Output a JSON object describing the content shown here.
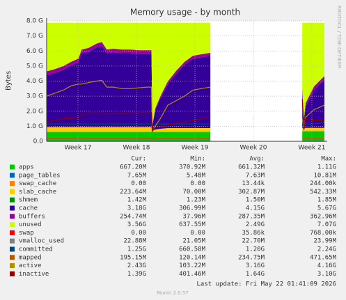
{
  "chart_data": {
    "type": "area",
    "title": "Memory usage - by month",
    "y_label": "Bytes",
    "side_text": "RRDTOOL / TOBI OETIKER",
    "x": [
      0,
      1,
      2,
      3,
      3.8,
      4.2,
      5,
      6,
      6.6,
      7.2,
      8,
      9,
      10,
      11,
      12,
      12.55,
      12.65,
      13,
      13.6,
      14.5,
      15.5,
      16.5,
      17.5,
      18.5,
      19.6,
      25,
      30.6,
      30.8,
      31,
      32,
      33.25
    ],
    "xlim": [
      0,
      33.25
    ],
    "xticks": [
      {
        "value": 3.75,
        "label": "Week 17"
      },
      {
        "value": 10.75,
        "label": "Week 18"
      },
      {
        "value": 17.75,
        "label": "Week 19"
      },
      {
        "value": 24.75,
        "label": "Week 20"
      },
      {
        "value": 31.75,
        "label": "Week 21"
      }
    ],
    "ylim": [
      0,
      8
    ],
    "yticks": [
      {
        "value": 0,
        "label": "0.0"
      },
      {
        "value": 1,
        "label": "1.0 G"
      },
      {
        "value": 2,
        "label": "2.0 G"
      },
      {
        "value": 3,
        "label": "3.0 G"
      },
      {
        "value": 4,
        "label": "4.0 G"
      },
      {
        "value": 5,
        "label": "5.0 G"
      },
      {
        "value": 6,
        "label": "6.0 G"
      },
      {
        "value": 7,
        "label": "7.0 G"
      },
      {
        "value": 8,
        "label": "8.0 G"
      }
    ],
    "grid": true,
    "stats_headers": [
      "Cur:",
      "Min:",
      "Avg:",
      "Max:"
    ],
    "series": [
      {
        "name": "apps",
        "color": "#00cc00",
        "stack": true,
        "stats": [
          "667.20M",
          "370.92M",
          "661.32M",
          "1.11G"
        ],
        "values": [
          0.62,
          0.62,
          0.62,
          0.62,
          0.62,
          0.62,
          0.62,
          0.62,
          0.62,
          0.62,
          0.62,
          0.62,
          0.62,
          0.62,
          0.62,
          0.62,
          0.62,
          0.62,
          0.62,
          0.62,
          0.62,
          0.62,
          0.62,
          0.62,
          0.62,
          null,
          0.66,
          0.66,
          0.66,
          0.66,
          0.66
        ]
      },
      {
        "name": "page_tables",
        "color": "#0066b3",
        "stack": true,
        "stats": [
          "7.65M",
          "5.48M",
          "7.63M",
          "10.81M"
        ],
        "values": [
          0.008,
          0.008,
          0.008,
          0.008,
          0.008,
          0.008,
          0.008,
          0.008,
          0.008,
          0.008,
          0.008,
          0.008,
          0.008,
          0.008,
          0.008,
          0.008,
          0.008,
          0.008,
          0.008,
          0.008,
          0.008,
          0.008,
          0.008,
          0.008,
          0.008,
          null,
          0.008,
          0.008,
          0.008,
          0.008,
          0.008
        ]
      },
      {
        "name": "swap_cache",
        "color": "#ff8000",
        "stack": true,
        "stats": [
          "0.00",
          "0.00",
          "13.44k",
          "244.00k"
        ],
        "values": [
          0,
          0,
          0,
          0,
          0,
          0,
          0,
          0,
          0,
          0,
          0,
          0,
          0,
          0,
          0,
          0,
          0,
          0,
          0,
          0,
          0,
          0,
          0,
          0,
          0,
          null,
          0,
          0,
          0,
          0,
          0
        ]
      },
      {
        "name": "slab_cache",
        "color": "#ffcc00",
        "stack": true,
        "stats": [
          "223.64M",
          "70.00M",
          "302.87M",
          "542.33M"
        ],
        "values": [
          0.32,
          0.32,
          0.32,
          0.32,
          0.32,
          0.32,
          0.32,
          0.32,
          0.32,
          0.32,
          0.32,
          0.32,
          0.32,
          0.32,
          0.32,
          0.32,
          0.08,
          0.15,
          0.2,
          0.25,
          0.25,
          0.25,
          0.25,
          0.25,
          0.25,
          null,
          0.22,
          0.22,
          0.22,
          0.22,
          0.22
        ]
      },
      {
        "name": "shmem",
        "color": "#008f00",
        "stack": true,
        "stats": [
          "1.42M",
          "1.23M",
          "1.50M",
          "1.85M"
        ],
        "values": [
          0.0015,
          0.0015,
          0.0015,
          0.0015,
          0.0015,
          0.0015,
          0.0015,
          0.0015,
          0.0015,
          0.0015,
          0.0015,
          0.0015,
          0.0015,
          0.0015,
          0.0015,
          0.0015,
          0.0015,
          0.0015,
          0.0015,
          0.0015,
          0.0015,
          0.0015,
          0.0015,
          0.0015,
          0.0015,
          null,
          0.0015,
          0.0015,
          0.0015,
          0.0015,
          0.0015
        ]
      },
      {
        "name": "cache",
        "color": "#330099",
        "stack": true,
        "stats": [
          "3.18G",
          "306.99M",
          "4.15G",
          "5.67G"
        ],
        "values": [
          3.45,
          3.6,
          3.8,
          4.1,
          4.3,
          4.9,
          5.0,
          5.3,
          5.4,
          4.9,
          4.95,
          4.9,
          4.9,
          4.85,
          4.85,
          4.85,
          0.3,
          1.3,
          2.0,
          2.9,
          3.6,
          4.2,
          4.6,
          4.7,
          4.8,
          null,
          2.4,
          0.4,
          1.4,
          2.5,
          3.2
        ]
      },
      {
        "name": "buffers",
        "color": "#990099",
        "stack": true,
        "stats": [
          "254.74M",
          "37.96M",
          "287.35M",
          "362.96M"
        ],
        "values": [
          0.25,
          0.25,
          0.25,
          0.25,
          0.25,
          0.25,
          0.25,
          0.25,
          0.25,
          0.25,
          0.25,
          0.25,
          0.25,
          0.25,
          0.25,
          0.25,
          0.04,
          0.1,
          0.15,
          0.2,
          0.2,
          0.2,
          0.2,
          0.2,
          0.2,
          null,
          0.25,
          0.25,
          0.25,
          0.25,
          0.25
        ]
      },
      {
        "name": "unused",
        "color": "#ccff00",
        "stack": true,
        "stats": [
          "3.56G",
          "637.55M",
          "2.49G",
          "7.07G"
        ],
        "values": [
          3.23,
          3.08,
          2.88,
          2.58,
          2.38,
          1.78,
          1.68,
          1.38,
          1.28,
          1.78,
          1.73,
          1.78,
          1.78,
          1.83,
          1.83,
          1.83,
          6.83,
          5.7,
          4.9,
          3.9,
          3.2,
          2.6,
          2.2,
          2.1,
          2.0,
          null,
          4.34,
          6.34,
          5.34,
          4.24,
          3.54
        ]
      },
      {
        "name": "swap",
        "color": "#ff0000",
        "stack": false,
        "stats": [
          "0.00",
          "0.00",
          "35.86k",
          "768.00k"
        ],
        "values": [
          0,
          0,
          0,
          0,
          0,
          0,
          0,
          0,
          0,
          0,
          0,
          0,
          0,
          0,
          0,
          0,
          0,
          0,
          0,
          0,
          0,
          0,
          0,
          0,
          0,
          null,
          0,
          0,
          0,
          0,
          0
        ]
      },
      {
        "name": "vmalloc_used",
        "color": "#808080",
        "stack": false,
        "stats": [
          "22.88M",
          "21.05M",
          "22.70M",
          "23.99M"
        ],
        "values": [
          0.022,
          0.022,
          0.022,
          0.022,
          0.022,
          0.022,
          0.022,
          0.022,
          0.022,
          0.022,
          0.022,
          0.022,
          0.022,
          0.022,
          0.022,
          0.022,
          0.022,
          0.022,
          0.022,
          0.022,
          0.022,
          0.022,
          0.022,
          0.022,
          0.022,
          null,
          0.022,
          0.022,
          0.022,
          0.022,
          0.022
        ]
      },
      {
        "name": "committed",
        "color": "#00487d",
        "stack": false,
        "stats": [
          "1.25G",
          "660.58M",
          "1.20G",
          "2.24G"
        ],
        "values": [
          1.15,
          1.15,
          1.15,
          1.15,
          1.15,
          1.15,
          1.15,
          1.15,
          1.15,
          1.15,
          1.15,
          1.15,
          1.15,
          1.15,
          1.15,
          1.15,
          0.7,
          1.15,
          1.15,
          1.15,
          1.15,
          1.15,
          1.15,
          1.15,
          1.15,
          null,
          1.15,
          0.8,
          1.15,
          1.15,
          1.25
        ]
      },
      {
        "name": "mapped",
        "color": "#b35a00",
        "stack": false,
        "stats": [
          "195.15M",
          "120.14M",
          "234.75M",
          "471.65M"
        ],
        "values": [
          0.2,
          0.2,
          0.2,
          0.2,
          0.2,
          0.2,
          0.2,
          0.2,
          0.2,
          0.2,
          0.2,
          0.2,
          0.2,
          0.2,
          0.2,
          0.2,
          0.12,
          0.2,
          0.2,
          0.2,
          0.2,
          0.2,
          0.2,
          0.2,
          0.2,
          null,
          0.2,
          0.2,
          0.2,
          0.2,
          0.2
        ]
      },
      {
        "name": "active",
        "color": "#b38f00",
        "stack": false,
        "stats": [
          "2.43G",
          "103.22M",
          "3.16G",
          "4.16G"
        ],
        "values": [
          3.0,
          3.2,
          3.4,
          3.7,
          3.8,
          3.8,
          3.9,
          4.0,
          4.05,
          3.6,
          3.6,
          3.5,
          3.5,
          3.55,
          3.6,
          3.6,
          0.6,
          1.0,
          1.5,
          2.4,
          2.7,
          3.0,
          3.4,
          3.5,
          3.6,
          null,
          1.5,
          0.9,
          1.6,
          2.1,
          2.4
        ]
      },
      {
        "name": "inactive",
        "color": "#8f0000",
        "stack": false,
        "stats": [
          "1.39G",
          "401.46M",
          "1.64G",
          "3.10G"
        ],
        "values": [
          1.3,
          1.4,
          1.5,
          1.5,
          1.6,
          1.8,
          1.9,
          1.9,
          1.9,
          1.8,
          1.85,
          1.85,
          1.9,
          1.9,
          1.9,
          1.9,
          0.7,
          0.9,
          1.0,
          1.1,
          1.2,
          1.3,
          1.4,
          1.5,
          1.7,
          null,
          2.8,
          0.8,
          1.5,
          1.4,
          1.4
        ]
      }
    ],
    "last_update": "Last update: Fri May 22 01:41:09 2026",
    "footer": "Munin 2.0.57"
  }
}
